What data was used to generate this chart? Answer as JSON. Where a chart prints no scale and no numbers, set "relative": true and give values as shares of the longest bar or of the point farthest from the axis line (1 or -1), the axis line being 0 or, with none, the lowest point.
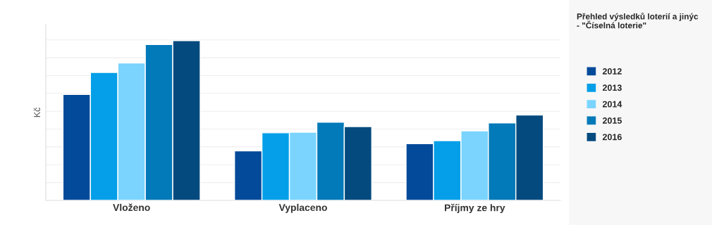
{
  "chart_data": {
    "type": "bar",
    "title": "Přehled výsledků loterií a jinýc\n- \"Číselná loterie\"",
    "ylabel": "Kč",
    "relative": true,
    "categories": [
      "Vloženo",
      "Vyplaceno",
      "Příjmy ze hry"
    ],
    "series": [
      {
        "name": "2012",
        "color": "#034a9a",
        "values": [
          0.663,
          0.31,
          0.355
        ]
      },
      {
        "name": "2013",
        "color": "#049fe8",
        "values": [
          0.801,
          0.423,
          0.374
        ]
      },
      {
        "name": "2014",
        "color": "#7ad4fe",
        "values": [
          0.86,
          0.427,
          0.435
        ]
      },
      {
        "name": "2015",
        "color": "#0279b8",
        "values": [
          0.975,
          0.489,
          0.485
        ]
      },
      {
        "name": "2016",
        "color": "#044a7e",
        "values": [
          1.0,
          0.462,
          0.534
        ]
      }
    ],
    "grid": "y",
    "legend": "right"
  }
}
